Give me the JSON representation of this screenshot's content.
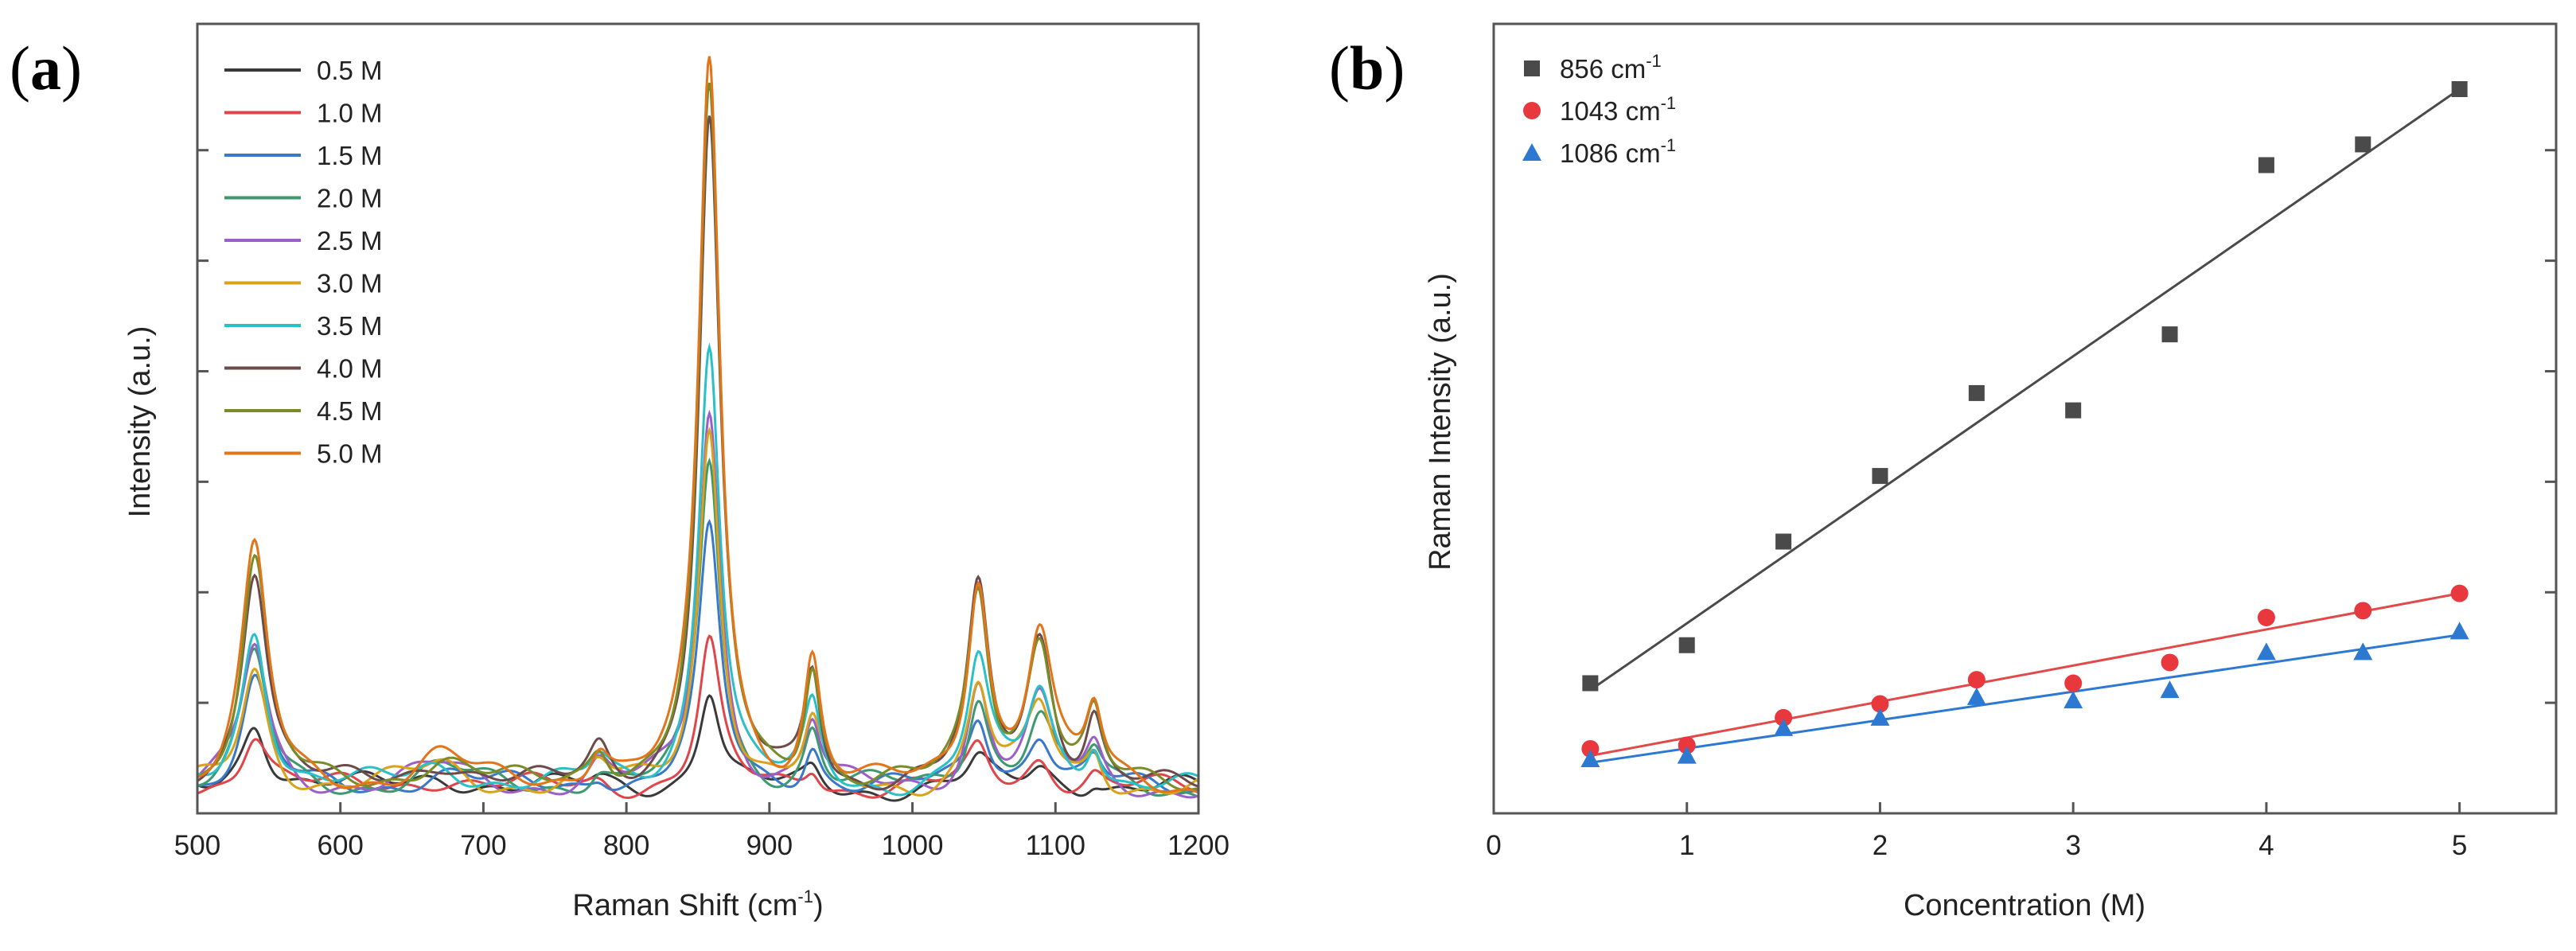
{
  "panels": {
    "a": {
      "letter_open": "(",
      "letter": "a",
      "letter_close": ")"
    },
    "b": {
      "letter_open": "(",
      "letter": "b",
      "letter_close": ")"
    }
  },
  "chart_data": [
    {
      "type": "line",
      "title": "",
      "xlabel_main": "Raman Shift (cm",
      "xlabel_sup": "-1",
      "xlabel_close": ")",
      "ylabel": "Intensity (a.u.)",
      "xlim": [
        500,
        1200
      ],
      "ylim": [
        0,
        1
      ],
      "xticks": [
        500,
        600,
        700,
        800,
        900,
        1000,
        1100,
        1200
      ],
      "xtick_labels": [
        "500",
        "600",
        "700",
        "800",
        "900",
        "1000",
        "1100",
        "1200"
      ],
      "yticks": [
        0.14,
        0.28,
        0.42,
        0.56,
        0.7,
        0.84
      ],
      "legend_position": "top-left",
      "baseline": 0.03,
      "peaks": [
        {
          "center": 540,
          "width": 11,
          "amp_max": 0.3
        },
        {
          "center": 670,
          "width": 24,
          "amp_max": 0.04
        },
        {
          "center": 781,
          "width": 9,
          "amp_max": 0.05
        },
        {
          "center": 858,
          "width": 9,
          "amp_max": 0.92
        },
        {
          "center": 930,
          "width": 7,
          "amp_max": 0.16
        },
        {
          "center": 1046,
          "width": 9,
          "amp_max": 0.26
        },
        {
          "center": 1089,
          "width": 11,
          "amp_max": 0.2
        },
        {
          "center": 1127,
          "width": 7,
          "amp_max": 0.09
        }
      ],
      "series": [
        {
          "name": "0.5 M",
          "color": "#3a3a3a",
          "peak_scale": [
            0.3,
            0.45,
            0.2,
            0.14,
            0.14,
            0.12,
            0.15,
            0.15
          ]
        },
        {
          "name": "1.0 M",
          "color": "#e0454a",
          "peak_scale": [
            0.25,
            0.4,
            0.2,
            0.2,
            0.18,
            0.18,
            0.2,
            0.2
          ]
        },
        {
          "name": "1.5 M",
          "color": "#3a78c9",
          "peak_scale": [
            0.45,
            0.5,
            0.38,
            0.35,
            0.35,
            0.35,
            0.36,
            0.36
          ]
        },
        {
          "name": "2.0 M",
          "color": "#3c9a6e",
          "peak_scale": [
            0.55,
            0.6,
            0.45,
            0.45,
            0.45,
            0.45,
            0.46,
            0.46
          ]
        },
        {
          "name": "2.5 M",
          "color": "#9c5fc7",
          "peak_scale": [
            0.6,
            0.65,
            0.52,
            0.52,
            0.5,
            0.5,
            0.52,
            0.52
          ]
        },
        {
          "name": "3.0 M",
          "color": "#d8a21a",
          "peak_scale": [
            0.5,
            0.7,
            0.5,
            0.5,
            0.48,
            0.5,
            0.5,
            0.5
          ]
        },
        {
          "name": "3.5 M",
          "color": "#29c0c8",
          "peak_scale": [
            0.68,
            0.75,
            0.62,
            0.62,
            0.6,
            0.6,
            0.62,
            0.62
          ]
        },
        {
          "name": "4.0 M",
          "color": "#6e4b4b",
          "peak_scale": [
            0.95,
            0.85,
            0.92,
            0.92,
            0.92,
            0.92,
            0.93,
            0.93
          ]
        },
        {
          "name": "4.5 M",
          "color": "#7a8c28",
          "peak_scale": [
            0.97,
            0.9,
            0.94,
            0.95,
            0.94,
            0.94,
            0.95,
            0.95
          ]
        },
        {
          "name": "5.0 M",
          "color": "#e2741a",
          "peak_scale": [
            1.0,
            1.0,
            1.0,
            1.0,
            1.0,
            1.0,
            1.0,
            1.0
          ]
        }
      ]
    },
    {
      "type": "scatter",
      "title": "",
      "xlabel": "Concentration (M)",
      "ylabel": "Raman Intensity (a.u.)",
      "xlim": [
        0,
        5.5
      ],
      "ylim": [
        0,
        1
      ],
      "xticks": [
        0,
        1,
        2,
        3,
        4,
        5
      ],
      "xtick_labels": [
        "0",
        "1",
        "2",
        "3",
        "4",
        "5"
      ],
      "yticks": [
        0.14,
        0.28,
        0.42,
        0.56,
        0.7,
        0.84
      ],
      "legend_position": "top-left",
      "x": [
        0.5,
        1.0,
        1.5,
        2.0,
        2.5,
        3.0,
        3.5,
        4.0,
        4.5,
        5.0
      ],
      "series": [
        {
          "name_main": "856 cm",
          "name_sup": "-1",
          "marker": "square",
          "color": "#4a4a4a",
          "line_color": "#4a4a4a",
          "values": [
            0.14,
            0.195,
            0.345,
            0.44,
            0.56,
            0.535,
            0.645,
            0.89,
            0.92,
            1.0
          ],
          "fit": [
            0.13,
            1.0
          ]
        },
        {
          "name_main": "1043 cm",
          "name_sup": "-1",
          "marker": "circle",
          "color": "#e8383d",
          "line_color": "#e04a4a",
          "values": [
            0.045,
            0.05,
            0.09,
            0.11,
            0.145,
            0.14,
            0.17,
            0.235,
            0.245,
            0.27
          ],
          "fit": [
            0.035,
            0.27
          ]
        },
        {
          "name_main": "1086 cm",
          "name_sup": "-1",
          "marker": "triangle",
          "color": "#2d79d2",
          "line_color": "#2d79d2",
          "values": [
            0.03,
            0.035,
            0.075,
            0.09,
            0.12,
            0.115,
            0.13,
            0.185,
            0.185,
            0.215
          ],
          "fit": [
            0.025,
            0.21
          ]
        }
      ]
    }
  ]
}
